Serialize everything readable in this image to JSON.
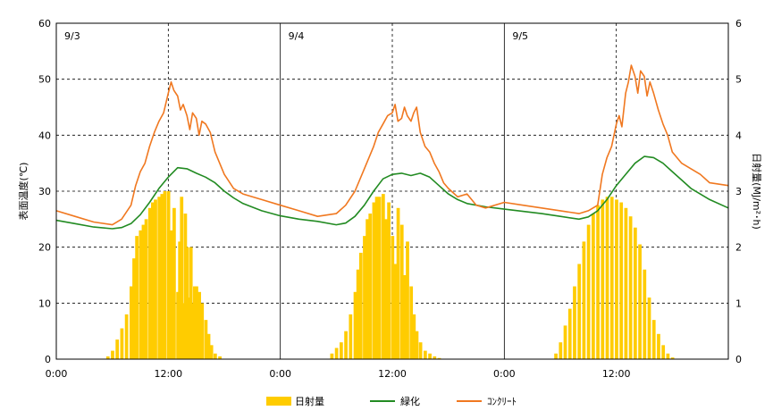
{
  "chart_data": {
    "type": "bar+line",
    "y_left_label": "表面温度(℃)",
    "y_right_label": "日射量(MJ/m²･h)",
    "y_left_range": [
      0,
      60
    ],
    "y_left_ticks": [
      "0",
      "10",
      "20",
      "30",
      "40",
      "50",
      "60"
    ],
    "y_right_range": [
      0,
      6
    ],
    "y_right_ticks": [
      "0",
      "1",
      "2",
      "3",
      "4",
      "5",
      "6"
    ],
    "x_hours_range": [
      0,
      72
    ],
    "x_ticks": [
      {
        "hour": 0,
        "label": "0:00"
      },
      {
        "hour": 12,
        "label": "12:00"
      },
      {
        "hour": 24,
        "label": "0:00"
      },
      {
        "hour": 36,
        "label": "12:00"
      },
      {
        "hour": 48,
        "label": "0:00"
      },
      {
        "hour": 60,
        "label": "12:00"
      }
    ],
    "day_labels": [
      {
        "hour": 0,
        "label": "9/3"
      },
      {
        "hour": 24,
        "label": "9/4"
      },
      {
        "hour": 48,
        "label": "9/5"
      }
    ],
    "grid": {
      "horizontal": "dashed",
      "noon_lines": "dashed",
      "midnight_lines": "solid"
    },
    "colors": {
      "radiation": "#FFCC00",
      "green": "#228B22",
      "concrete": "#F07820"
    },
    "legend": [
      {
        "key": "radiation",
        "label": "日射量",
        "kind": "bar"
      },
      {
        "key": "green",
        "label": "緑化",
        "kind": "line"
      },
      {
        "key": "concrete",
        "label": "ｺﾝｸﾘｰﾄ",
        "kind": "line"
      }
    ],
    "series": [
      {
        "key": "radiation",
        "axis": "right",
        "x": [
          5.5,
          6.0,
          6.5,
          7.0,
          7.5,
          8.0,
          8.3,
          8.6,
          9.0,
          9.3,
          9.6,
          10.0,
          10.3,
          10.6,
          11.0,
          11.3,
          11.6,
          12.0,
          12.3,
          12.6,
          13.0,
          13.2,
          13.4,
          13.6,
          13.8,
          14.0,
          14.2,
          14.4,
          14.6,
          14.8,
          15.0,
          15.3,
          15.6,
          16.0,
          16.3,
          16.6,
          17.0,
          17.5,
          18.0,
          29.5,
          30.0,
          30.5,
          31.0,
          31.5,
          32.0,
          32.3,
          32.6,
          33.0,
          33.3,
          33.6,
          34.0,
          34.3,
          34.6,
          35.0,
          35.3,
          35.6,
          36.0,
          36.3,
          36.6,
          37.0,
          37.3,
          37.6,
          38.0,
          38.3,
          38.6,
          39.0,
          39.5,
          40.0,
          40.5,
          41.0,
          41.5,
          42.0,
          53.5,
          54.0,
          54.5,
          55.0,
          55.5,
          56.0,
          56.5,
          57.0,
          57.5,
          58.0,
          58.5,
          59.0,
          59.5,
          60.0,
          60.5,
          61.0,
          61.5,
          62.0,
          62.5,
          63.0,
          63.5,
          64.0,
          64.5,
          65.0,
          65.5,
          66.0
        ],
        "values": [
          0.05,
          0.15,
          0.35,
          0.55,
          0.8,
          1.3,
          1.8,
          2.2,
          2.3,
          2.4,
          2.5,
          2.7,
          2.8,
          2.85,
          2.9,
          2.95,
          3.0,
          3.0,
          2.3,
          2.7,
          1.2,
          2.1,
          2.9,
          1.0,
          2.6,
          2.0,
          1.1,
          2.0,
          1.0,
          1.3,
          1.3,
          1.2,
          1.0,
          0.7,
          0.45,
          0.25,
          0.1,
          0.05,
          0.0,
          0.1,
          0.2,
          0.3,
          0.5,
          0.8,
          1.2,
          1.6,
          1.9,
          2.2,
          2.5,
          2.6,
          2.8,
          2.9,
          2.9,
          2.95,
          2.5,
          2.8,
          2.2,
          1.7,
          2.7,
          2.4,
          1.5,
          2.1,
          1.3,
          0.8,
          0.5,
          0.3,
          0.15,
          0.1,
          0.05,
          0.02,
          0.0,
          0.0,
          0.1,
          0.3,
          0.6,
          0.9,
          1.3,
          1.7,
          2.1,
          2.4,
          2.6,
          2.75,
          2.85,
          2.9,
          2.9,
          2.85,
          2.8,
          2.7,
          2.55,
          2.35,
          2.05,
          1.6,
          1.1,
          0.7,
          0.45,
          0.25,
          0.1,
          0.03
        ]
      },
      {
        "key": "green",
        "axis": "left",
        "x": [
          0,
          2,
          4,
          6,
          7,
          8,
          9,
          10,
          11,
          12,
          13,
          14,
          15,
          16,
          17,
          18,
          19,
          20,
          22,
          24,
          26,
          28,
          30,
          31,
          32,
          33,
          34,
          35,
          36,
          37,
          38,
          39,
          40,
          41,
          42,
          43,
          44,
          46,
          48,
          50,
          52,
          54,
          56,
          57,
          58,
          59,
          60,
          61,
          62,
          63,
          64,
          65,
          66,
          67,
          68,
          70,
          72
        ],
        "values": [
          24.8,
          24.2,
          23.6,
          23.3,
          23.5,
          24.2,
          25.8,
          28.0,
          30.5,
          32.5,
          34.2,
          34.0,
          33.2,
          32.5,
          31.5,
          30.0,
          28.8,
          27.8,
          26.5,
          25.6,
          25.0,
          24.6,
          24.0,
          24.3,
          25.5,
          27.5,
          30.0,
          32.2,
          33.0,
          33.2,
          32.8,
          33.2,
          32.5,
          31.0,
          29.5,
          28.5,
          27.8,
          27.2,
          26.8,
          26.4,
          26.0,
          25.5,
          25.0,
          25.4,
          26.5,
          28.5,
          31.0,
          33.0,
          35.0,
          36.2,
          36.0,
          35.0,
          33.5,
          32.0,
          30.5,
          28.5,
          27.0
        ]
      },
      {
        "key": "concrete",
        "axis": "left",
        "x": [
          0,
          2,
          4,
          6,
          7,
          8,
          8.5,
          9,
          9.5,
          10,
          10.5,
          11,
          11.5,
          12,
          12.3,
          12.6,
          13,
          13.3,
          13.6,
          14,
          14.3,
          14.6,
          15,
          15.3,
          15.6,
          16,
          16.5,
          17,
          18,
          19,
          20,
          22,
          24,
          26,
          28,
          30,
          31,
          32,
          33,
          33.5,
          34,
          34.5,
          35,
          35.5,
          36,
          36.3,
          36.6,
          37,
          37.3,
          37.6,
          38,
          38.3,
          38.6,
          39,
          39.5,
          40,
          40.5,
          41,
          41.5,
          42,
          43,
          44,
          45,
          46,
          48,
          50,
          52,
          54,
          56,
          57,
          58,
          58.5,
          59,
          59.5,
          60,
          60.3,
          60.6,
          61,
          61.3,
          61.6,
          62,
          62.3,
          62.6,
          63,
          63.3,
          63.6,
          64,
          64.5,
          65,
          65.5,
          66,
          67,
          68,
          69,
          70,
          72
        ],
        "values": [
          26.5,
          25.5,
          24.5,
          24.0,
          25.0,
          27.5,
          31.0,
          33.5,
          35.0,
          38.0,
          40.5,
          42.5,
          44.0,
          47.5,
          49.5,
          48.0,
          47.0,
          44.5,
          45.5,
          43.5,
          41.0,
          44.0,
          43.0,
          40.0,
          42.5,
          42.0,
          40.5,
          37.0,
          33.0,
          30.5,
          29.5,
          28.5,
          27.5,
          26.5,
          25.5,
          26.0,
          27.5,
          30.0,
          34.0,
          36.0,
          38.0,
          40.5,
          42.0,
          43.5,
          44.0,
          45.5,
          42.5,
          43.0,
          45.0,
          43.5,
          42.5,
          44.0,
          45.0,
          40.5,
          38.0,
          37.0,
          35.0,
          33.5,
          31.5,
          30.5,
          29.0,
          29.5,
          27.5,
          27.0,
          28.0,
          27.5,
          27.0,
          26.5,
          26.0,
          26.5,
          27.5,
          33.0,
          36.0,
          38.0,
          42.0,
          43.5,
          41.5,
          47.5,
          49.5,
          52.5,
          50.5,
          47.5,
          51.5,
          50.5,
          47.0,
          49.5,
          47.5,
          44.5,
          42.0,
          40.0,
          37.0,
          35.0,
          34.0,
          33.0,
          31.5,
          31.0
        ]
      }
    ]
  }
}
